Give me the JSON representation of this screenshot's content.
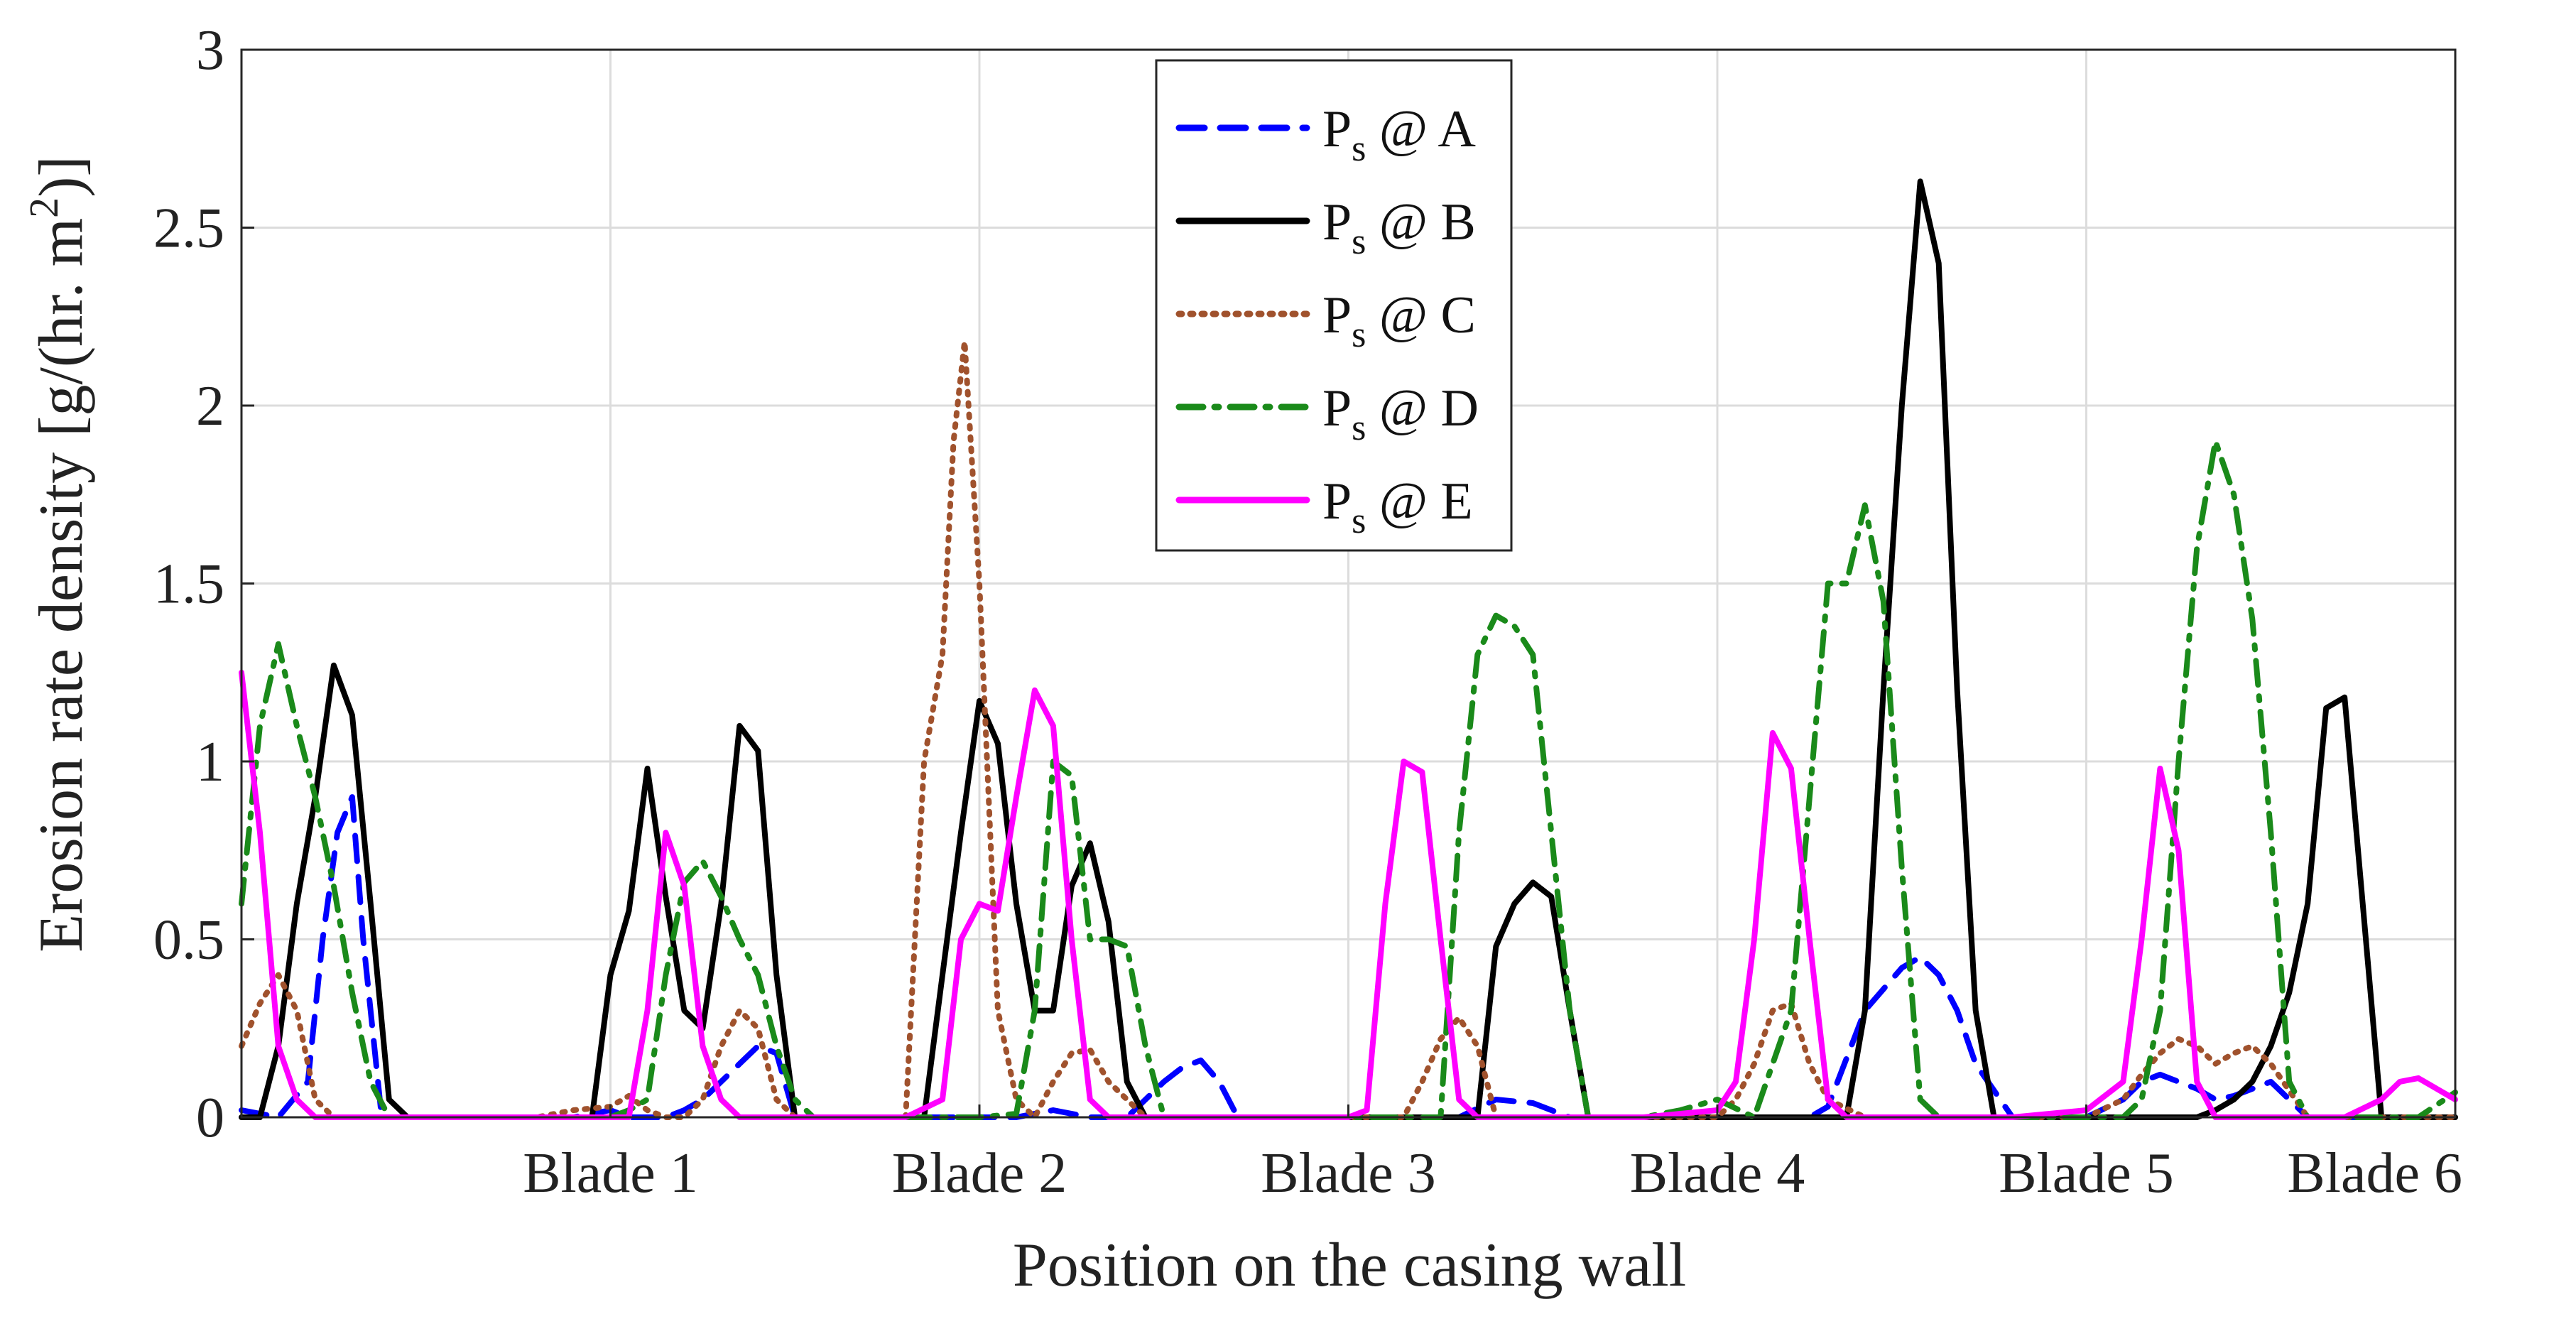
{
  "chart_data": {
    "type": "line",
    "title": "",
    "xlabel": "Position on the casing wall",
    "ylabel": "Erosion rate density [g/(hr. m",
    "ylabel_sup": "2",
    "ylabel_end": ")]",
    "xlim": [
      0,
      6
    ],
    "ylim": [
      0,
      3
    ],
    "yticks": [
      0,
      0.5,
      1,
      1.5,
      2,
      2.5,
      3
    ],
    "ytick_labels": [
      "0",
      "0.5",
      "1",
      "1.5",
      "2",
      "2.5",
      "3"
    ],
    "xticks": [
      1,
      2,
      3,
      4,
      5,
      6
    ],
    "xtick_labels": [
      "Blade 1",
      "Blade 2",
      "Blade 3",
      "Blade 4",
      "Blade 5",
      "Blade 6"
    ],
    "grid": true,
    "legend_position": "top-center",
    "series": [
      {
        "name": "Ps @ A",
        "label_main": "P",
        "label_sub": "s",
        "label_rest": " @ A",
        "color": "#0000ff",
        "style": "dashed",
        "x": [
          0.0,
          0.1,
          0.18,
          0.22,
          0.26,
          0.3,
          0.33,
          0.38,
          0.42,
          0.8,
          0.9,
          1.0,
          1.05,
          1.1,
          1.15,
          1.2,
          1.25,
          1.3,
          1.35,
          1.4,
          1.45,
          1.5,
          1.6,
          2.0,
          2.1,
          2.2,
          2.3,
          2.4,
          2.45,
          2.5,
          2.55,
          2.6,
          2.65,
          2.7,
          3.1,
          3.2,
          3.3,
          3.4,
          3.5,
          3.6,
          3.7,
          4.0,
          4.1,
          4.2,
          4.25,
          4.3,
          4.4,
          4.5,
          4.55,
          4.6,
          4.65,
          4.7,
          4.8,
          5.0,
          5.1,
          5.15,
          5.2,
          5.25,
          5.3,
          5.35,
          5.4,
          5.45,
          5.5,
          5.6,
          5.8,
          6.0
        ],
        "y": [
          0.02,
          0.0,
          0.1,
          0.5,
          0.8,
          0.9,
          0.5,
          0.0,
          0.0,
          0.0,
          0.0,
          0.02,
          0.0,
          0.0,
          0.0,
          0.02,
          0.05,
          0.1,
          0.15,
          0.2,
          0.18,
          0.0,
          0.0,
          0.0,
          0.0,
          0.02,
          0.0,
          0.0,
          0.05,
          0.1,
          0.14,
          0.16,
          0.1,
          0.0,
          0.0,
          0.0,
          0.0,
          0.05,
          0.04,
          0.0,
          0.0,
          0.0,
          0.0,
          0.0,
          0.0,
          0.03,
          0.3,
          0.42,
          0.45,
          0.4,
          0.3,
          0.15,
          0.0,
          0.0,
          0.05,
          0.1,
          0.12,
          0.1,
          0.08,
          0.05,
          0.06,
          0.08,
          0.1,
          0.0,
          0.0,
          0.0
        ]
      },
      {
        "name": "Ps @ B",
        "label_main": "P",
        "label_sub": "s",
        "label_rest": " @ B",
        "color": "#000000",
        "style": "solid",
        "x": [
          0.0,
          0.05,
          0.1,
          0.15,
          0.2,
          0.25,
          0.3,
          0.35,
          0.4,
          0.45,
          0.5,
          0.8,
          0.85,
          0.9,
          0.95,
          1.0,
          1.05,
          1.1,
          1.15,
          1.2,
          1.25,
          1.3,
          1.35,
          1.4,
          1.45,
          1.5,
          1.6,
          1.7,
          1.75,
          1.8,
          1.85,
          1.9,
          1.95,
          2.0,
          2.05,
          2.1,
          2.15,
          2.2,
          2.25,
          2.3,
          2.35,
          2.4,
          2.45,
          2.5,
          2.55,
          2.6,
          2.7,
          2.8,
          3.0,
          3.1,
          3.2,
          3.3,
          3.35,
          3.4,
          3.45,
          3.5,
          3.55,
          3.6,
          3.65,
          3.7,
          3.8,
          4.0,
          4.2,
          4.3,
          4.35,
          4.4,
          4.45,
          4.5,
          4.55,
          4.6,
          4.65,
          4.7,
          4.75,
          4.8,
          4.9,
          5.0,
          5.1,
          5.2,
          5.25,
          5.3,
          5.35,
          5.4,
          5.45,
          5.5,
          5.55,
          5.6,
          5.65,
          5.7,
          5.8,
          6.0
        ],
        "y": [
          0.0,
          0.0,
          0.2,
          0.6,
          0.9,
          1.27,
          1.13,
          0.6,
          0.05,
          0.0,
          0.0,
          0.0,
          0.0,
          0.0,
          0.0,
          0.4,
          0.58,
          0.98,
          0.62,
          0.3,
          0.25,
          0.6,
          1.1,
          1.03,
          0.4,
          0.0,
          0.0,
          0.0,
          0.0,
          0.0,
          0.0,
          0.4,
          0.8,
          1.17,
          1.05,
          0.6,
          0.3,
          0.3,
          0.65,
          0.77,
          0.55,
          0.1,
          0.0,
          0.0,
          0.0,
          0.0,
          0.0,
          0.0,
          0.0,
          0.0,
          0.0,
          0.0,
          0.0,
          0.48,
          0.6,
          0.66,
          0.62,
          0.3,
          0.0,
          0.0,
          0.0,
          0.0,
          0.0,
          0.0,
          0.0,
          0.3,
          1.2,
          2.0,
          2.63,
          2.4,
          1.2,
          0.3,
          0.0,
          0.0,
          0.0,
          0.0,
          0.0,
          0.0,
          0.0,
          0.0,
          0.02,
          0.05,
          0.1,
          0.2,
          0.35,
          0.6,
          1.15,
          1.18,
          0.0,
          0.0
        ]
      },
      {
        "name": "Ps @ C",
        "label_main": "P",
        "label_sub": "s",
        "label_rest": " @ C",
        "color": "#a0522d",
        "style": "dotted",
        "x": [
          0.0,
          0.05,
          0.1,
          0.15,
          0.2,
          0.25,
          0.3,
          0.35,
          0.4,
          0.8,
          0.9,
          1.0,
          1.05,
          1.1,
          1.15,
          1.2,
          1.25,
          1.3,
          1.35,
          1.4,
          1.45,
          1.5,
          1.6,
          1.7,
          1.75,
          1.8,
          1.85,
          1.9,
          1.93,
          1.96,
          2.0,
          2.05,
          2.1,
          2.15,
          2.2,
          2.25,
          2.3,
          2.35,
          2.4,
          2.45,
          2.5,
          2.6,
          3.0,
          3.1,
          3.15,
          3.2,
          3.25,
          3.3,
          3.35,
          3.4,
          3.6,
          4.0,
          4.05,
          4.1,
          4.15,
          4.2,
          4.25,
          4.3,
          4.4,
          4.5,
          4.6,
          5.0,
          5.1,
          5.15,
          5.2,
          5.25,
          5.3,
          5.35,
          5.4,
          5.45,
          5.5,
          5.6,
          6.0
        ],
        "y": [
          0.2,
          0.32,
          0.4,
          0.3,
          0.05,
          0.0,
          0.0,
          0.0,
          0.0,
          0.0,
          0.02,
          0.03,
          0.06,
          0.02,
          0.0,
          0.0,
          0.05,
          0.2,
          0.3,
          0.25,
          0.05,
          0.0,
          0.0,
          0.0,
          0.0,
          0.0,
          1.0,
          1.3,
          1.9,
          2.18,
          1.5,
          0.3,
          0.05,
          0.0,
          0.1,
          0.18,
          0.19,
          0.1,
          0.05,
          0.0,
          0.0,
          0.0,
          0.0,
          0.0,
          0.0,
          0.1,
          0.22,
          0.28,
          0.2,
          0.0,
          0.0,
          0.0,
          0.05,
          0.15,
          0.3,
          0.32,
          0.15,
          0.05,
          0.0,
          0.0,
          0.0,
          0.0,
          0.05,
          0.12,
          0.18,
          0.22,
          0.2,
          0.15,
          0.18,
          0.2,
          0.15,
          0.0,
          0.0
        ]
      },
      {
        "name": "Ps @ D",
        "label_main": "P",
        "label_sub": "s",
        "label_rest": " @ D",
        "color": "#1a8a1a",
        "style": "dashdot",
        "x": [
          0.0,
          0.05,
          0.1,
          0.15,
          0.2,
          0.25,
          0.3,
          0.35,
          0.4,
          0.45,
          0.5,
          0.8,
          0.9,
          1.0,
          1.05,
          1.1,
          1.15,
          1.2,
          1.25,
          1.3,
          1.35,
          1.4,
          1.45,
          1.5,
          1.55,
          1.6,
          2.0,
          2.1,
          2.15,
          2.2,
          2.25,
          2.3,
          2.35,
          2.4,
          2.45,
          2.5,
          2.55,
          2.6,
          2.7,
          2.8,
          2.9,
          3.0,
          3.1,
          3.2,
          3.25,
          3.3,
          3.35,
          3.4,
          3.45,
          3.5,
          3.55,
          3.6,
          3.65,
          3.7,
          3.8,
          3.9,
          4.0,
          4.1,
          4.2,
          4.25,
          4.3,
          4.35,
          4.4,
          4.45,
          4.5,
          4.55,
          4.6,
          4.7,
          4.8,
          5.0,
          5.1,
          5.15,
          5.2,
          5.25,
          5.3,
          5.35,
          5.4,
          5.45,
          5.5,
          5.55,
          5.6,
          5.7,
          5.8,
          5.9,
          6.0
        ],
        "y": [
          0.6,
          1.1,
          1.33,
          1.1,
          0.9,
          0.65,
          0.35,
          0.1,
          0.0,
          0.0,
          0.0,
          0.0,
          0.0,
          0.0,
          0.02,
          0.05,
          0.4,
          0.66,
          0.72,
          0.62,
          0.5,
          0.4,
          0.2,
          0.05,
          0.0,
          0.0,
          0.0,
          0.01,
          0.3,
          1.0,
          0.96,
          0.5,
          0.5,
          0.48,
          0.2,
          0.0,
          0.0,
          0.0,
          0.0,
          0.0,
          0.0,
          0.0,
          0.0,
          0.0,
          0.0,
          0.8,
          1.3,
          1.41,
          1.38,
          1.3,
          0.8,
          0.3,
          0.0,
          0.0,
          0.0,
          0.02,
          0.05,
          0.0,
          0.3,
          0.9,
          1.5,
          1.5,
          1.72,
          1.45,
          0.7,
          0.05,
          0.0,
          0.0,
          0.0,
          0.0,
          0.0,
          0.05,
          0.3,
          1.0,
          1.6,
          1.9,
          1.75,
          1.4,
          0.8,
          0.1,
          0.0,
          0.0,
          0.0,
          0.0,
          0.07
        ]
      },
      {
        "name": "Ps @ E",
        "label_main": "P",
        "label_sub": "s",
        "label_rest": " @ E",
        "color": "#ff00ff",
        "style": "solid",
        "x": [
          0.0,
          0.05,
          0.1,
          0.15,
          0.2,
          0.25,
          0.3,
          0.35,
          0.4,
          0.8,
          1.0,
          1.05,
          1.1,
          1.15,
          1.2,
          1.25,
          1.3,
          1.35,
          1.4,
          1.5,
          1.8,
          1.9,
          1.95,
          2.0,
          2.05,
          2.1,
          2.15,
          2.2,
          2.25,
          2.3,
          2.35,
          2.4,
          2.45,
          2.5,
          2.6,
          2.8,
          3.0,
          3.05,
          3.1,
          3.15,
          3.2,
          3.25,
          3.3,
          3.35,
          3.4,
          3.5,
          3.8,
          4.0,
          4.05,
          4.1,
          4.15,
          4.2,
          4.25,
          4.3,
          4.35,
          4.4,
          4.5,
          4.8,
          5.0,
          5.1,
          5.15,
          5.2,
          5.25,
          5.3,
          5.35,
          5.4,
          5.5,
          5.7,
          5.8,
          5.85,
          5.9,
          5.95,
          6.0
        ],
        "y": [
          1.25,
          0.8,
          0.2,
          0.05,
          0.0,
          0.0,
          0.0,
          0.0,
          0.0,
          0.0,
          0.0,
          0.0,
          0.3,
          0.8,
          0.65,
          0.2,
          0.05,
          0.0,
          0.0,
          0.0,
          0.0,
          0.05,
          0.5,
          0.6,
          0.58,
          0.9,
          1.2,
          1.1,
          0.5,
          0.05,
          0.0,
          0.0,
          0.0,
          0.0,
          0.0,
          0.0,
          0.0,
          0.02,
          0.6,
          1.0,
          0.97,
          0.5,
          0.05,
          0.0,
          0.0,
          0.0,
          0.0,
          0.02,
          0.1,
          0.5,
          1.08,
          0.98,
          0.5,
          0.05,
          0.0,
          0.0,
          0.0,
          0.0,
          0.02,
          0.1,
          0.5,
          0.98,
          0.75,
          0.1,
          0.0,
          0.0,
          0.0,
          0.0,
          0.05,
          0.1,
          0.11,
          0.08,
          0.05
        ]
      }
    ]
  }
}
